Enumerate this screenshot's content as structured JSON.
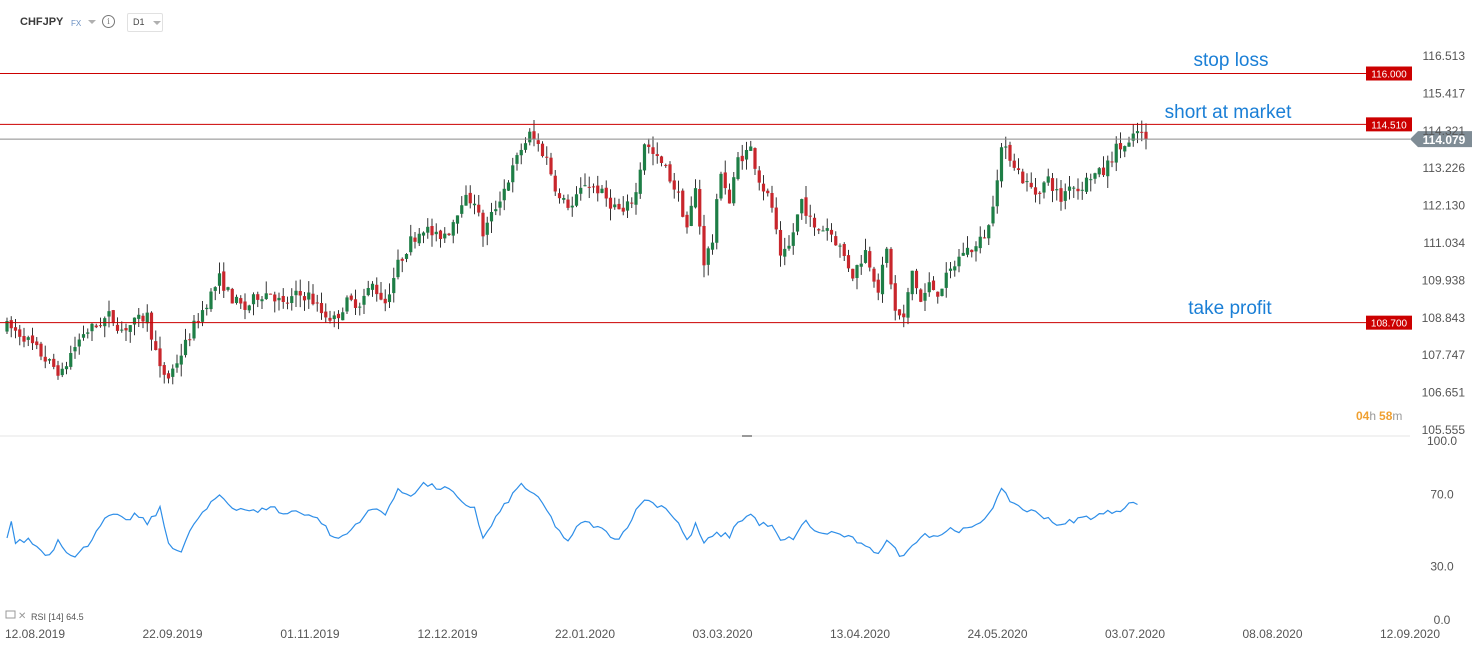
{
  "toolbar": {
    "symbol": "CHFJPY",
    "market": "FX",
    "info_icon": "info-icon",
    "timeframe": "D1"
  },
  "colors": {
    "up": "#1e7e46",
    "down": "#c8262c",
    "level_line": "#cc0000",
    "annotation_text": "#1a7fd6",
    "rsi_line": "#2e8ee8",
    "current_price_bg": "#7f8c95",
    "countdown": "#f0a030",
    "axis_text": "#555555"
  },
  "countdown": {
    "hours": "04",
    "h_unit": "h",
    "minutes": "58",
    "m_unit": "m"
  },
  "chart_data": [
    {
      "type": "candlestick",
      "title": "",
      "y_ticks": [
        "116.513",
        "115.417",
        "114.321",
        "113.226",
        "112.130",
        "111.034",
        "109.938",
        "108.843",
        "107.747",
        "106.651",
        "105.555"
      ],
      "ylim": [
        105.555,
        116.513
      ],
      "x_ticks": [
        "12.08.2019",
        "22.09.2019",
        "01.11.2019",
        "12.12.2019",
        "22.01.2020",
        "03.03.2020",
        "13.04.2020",
        "24.05.2020",
        "03.07.2020",
        "08.08.2020",
        "12.09.2020"
      ],
      "current_price": {
        "value": 114.079,
        "label": "114.079"
      },
      "levels": [
        {
          "name": "stop-loss",
          "value": 116.0,
          "label": "116.000",
          "annotation": "stop loss"
        },
        {
          "name": "short-at-market",
          "value": 114.51,
          "label": "114.510",
          "annotation": "short at market"
        },
        {
          "name": "take-profit",
          "value": 108.7,
          "label": "108.700",
          "annotation": "take profit"
        }
      ],
      "close_waypoints": [
        [
          0,
          108.6
        ],
        [
          4,
          108.3
        ],
        [
          7,
          107.9
        ],
        [
          10,
          107.5
        ],
        [
          13,
          107.2
        ],
        [
          15,
          107.8
        ],
        [
          18,
          108.4
        ],
        [
          21,
          108.6
        ],
        [
          24,
          108.9
        ],
        [
          27,
          108.5
        ],
        [
          30,
          108.7
        ],
        [
          33,
          108.9
        ],
        [
          36,
          107.3
        ],
        [
          38,
          107.1
        ],
        [
          41,
          107.8
        ],
        [
          44,
          108.6
        ],
        [
          47,
          109.3
        ],
        [
          50,
          110.0
        ],
        [
          53,
          109.4
        ],
        [
          56,
          109.1
        ],
        [
          59,
          109.5
        ],
        [
          62,
          109.6
        ],
        [
          65,
          109.2
        ],
        [
          68,
          109.5
        ],
        [
          71,
          109.5
        ],
        [
          74,
          109.0
        ],
        [
          77,
          108.8
        ],
        [
          80,
          109.3
        ],
        [
          83,
          109.3
        ],
        [
          86,
          109.8
        ],
        [
          89,
          109.3
        ],
        [
          92,
          110.4
        ],
        [
          95,
          111.1
        ],
        [
          98,
          111.5
        ],
        [
          101,
          111.2
        ],
        [
          104,
          111.4
        ],
        [
          107,
          112.3
        ],
        [
          110,
          112.3
        ],
        [
          112,
          111.3
        ],
        [
          115,
          112.1
        ],
        [
          118,
          112.9
        ],
        [
          121,
          113.8
        ],
        [
          123,
          114.2
        ],
        [
          125,
          113.9
        ],
        [
          127,
          113.5
        ],
        [
          130,
          112.3
        ],
        [
          133,
          112.1
        ],
        [
          136,
          112.8
        ],
        [
          139,
          112.6
        ],
        [
          142,
          112.2
        ],
        [
          145,
          111.9
        ],
        [
          148,
          112.5
        ],
        [
          150,
          114.0
        ],
        [
          152,
          113.6
        ],
        [
          155,
          113.2
        ],
        [
          158,
          112.4
        ],
        [
          160,
          111.5
        ],
        [
          162,
          112.6
        ],
        [
          164,
          110.5
        ],
        [
          166,
          111.1
        ],
        [
          168,
          113.2
        ],
        [
          170,
          112.2
        ],
        [
          172,
          113.5
        ],
        [
          175,
          113.8
        ],
        [
          177,
          112.9
        ],
        [
          180,
          112.1
        ],
        [
          182,
          110.5
        ],
        [
          184,
          110.9
        ],
        [
          187,
          112.3
        ],
        [
          190,
          111.4
        ],
        [
          193,
          111.5
        ],
        [
          196,
          110.9
        ],
        [
          199,
          110.1
        ],
        [
          202,
          110.8
        ],
        [
          205,
          109.7
        ],
        [
          207,
          110.8
        ],
        [
          209,
          109.0
        ],
        [
          211,
          108.8
        ],
        [
          213,
          110.2
        ],
        [
          215,
          109.3
        ],
        [
          217,
          109.8
        ],
        [
          219,
          109.6
        ],
        [
          222,
          110.2
        ],
        [
          225,
          110.8
        ],
        [
          228,
          110.9
        ],
        [
          231,
          111.5
        ],
        [
          234,
          113.8
        ],
        [
          236,
          113.6
        ],
        [
          239,
          112.9
        ],
        [
          242,
          112.5
        ],
        [
          245,
          112.9
        ],
        [
          248,
          112.3
        ],
        [
          250,
          112.8
        ],
        [
          252,
          112.6
        ],
        [
          255,
          113.0
        ],
        [
          258,
          113.1
        ],
        [
          261,
          113.8
        ],
        [
          264,
          113.9
        ],
        [
          266,
          114.3
        ],
        [
          268,
          114.1
        ]
      ]
    },
    {
      "type": "line",
      "title": "",
      "name": "RSI",
      "legend": {
        "label": "RSI",
        "params": "[14]",
        "value": "64.5"
      },
      "y_ticks": [
        "100.0",
        "70.0",
        "30.0",
        "0.0"
      ],
      "ylim": [
        0,
        100
      ],
      "waypoints": [
        [
          0,
          47
        ],
        [
          1,
          55
        ],
        [
          2,
          43
        ],
        [
          5,
          45
        ],
        [
          8,
          39
        ],
        [
          10,
          36
        ],
        [
          12,
          45
        ],
        [
          14,
          39
        ],
        [
          16,
          35
        ],
        [
          19,
          42
        ],
        [
          22,
          54
        ],
        [
          25,
          59
        ],
        [
          28,
          55
        ],
        [
          30,
          59
        ],
        [
          33,
          54
        ],
        [
          36,
          62
        ],
        [
          38,
          43
        ],
        [
          41,
          38
        ],
        [
          44,
          54
        ],
        [
          47,
          62
        ],
        [
          50,
          70
        ],
        [
          53,
          63
        ],
        [
          56,
          62
        ],
        [
          59,
          60
        ],
        [
          62,
          64
        ],
        [
          65,
          59
        ],
        [
          68,
          61
        ],
        [
          71,
          59
        ],
        [
          74,
          55
        ],
        [
          77,
          45
        ],
        [
          80,
          48
        ],
        [
          83,
          56
        ],
        [
          86,
          62
        ],
        [
          89,
          60
        ],
        [
          92,
          72
        ],
        [
          95,
          70
        ],
        [
          98,
          76
        ],
        [
          101,
          74
        ],
        [
          104,
          73
        ],
        [
          107,
          65
        ],
        [
          110,
          63
        ],
        [
          112,
          45
        ],
        [
          115,
          57
        ],
        [
          118,
          67
        ],
        [
          121,
          76
        ],
        [
          123,
          72
        ],
        [
          126,
          65
        ],
        [
          129,
          53
        ],
        [
          132,
          43
        ],
        [
          135,
          55
        ],
        [
          138,
          53
        ],
        [
          141,
          49
        ],
        [
          144,
          45
        ],
        [
          147,
          57
        ],
        [
          150,
          68
        ],
        [
          152,
          65
        ],
        [
          155,
          63
        ],
        [
          158,
          54
        ],
        [
          160,
          44
        ],
        [
          162,
          53
        ],
        [
          164,
          43
        ],
        [
          167,
          48
        ],
        [
          170,
          47
        ],
        [
          172,
          55
        ],
        [
          175,
          59
        ],
        [
          177,
          54
        ],
        [
          180,
          52
        ],
        [
          182,
          44
        ],
        [
          185,
          46
        ],
        [
          188,
          55
        ],
        [
          191,
          48
        ],
        [
          194,
          49
        ],
        [
          197,
          47
        ],
        [
          200,
          44
        ],
        [
          202,
          40
        ],
        [
          205,
          38
        ],
        [
          207,
          45
        ],
        [
          209,
          39
        ],
        [
          211,
          35
        ],
        [
          213,
          43
        ],
        [
          216,
          48
        ],
        [
          219,
          47
        ],
        [
          222,
          51
        ],
        [
          225,
          50
        ],
        [
          228,
          52
        ],
        [
          231,
          60
        ],
        [
          234,
          72
        ],
        [
          236,
          67
        ],
        [
          239,
          62
        ],
        [
          242,
          60
        ],
        [
          245,
          57
        ],
        [
          248,
          52
        ],
        [
          250,
          55
        ],
        [
          253,
          57
        ],
        [
          256,
          58
        ],
        [
          259,
          60
        ],
        [
          262,
          62
        ],
        [
          264,
          65
        ],
        [
          266,
          64.5
        ]
      ]
    }
  ]
}
